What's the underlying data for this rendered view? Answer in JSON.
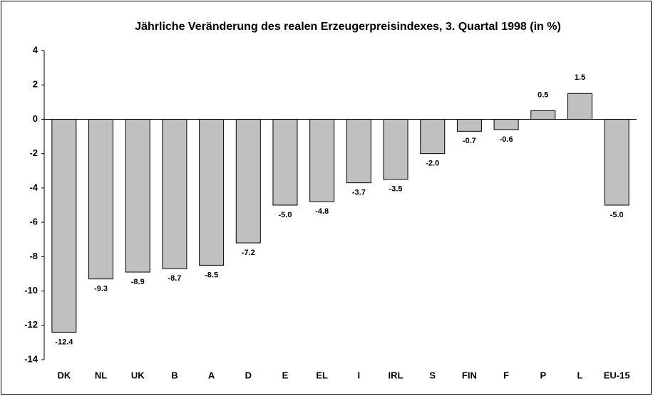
{
  "chart_data": {
    "type": "bar",
    "title": "Jährliche Veränderung des realen Erzeugerpreisindexes, 3. Quartal 1998 (in %)",
    "categories": [
      "DK",
      "NL",
      "UK",
      "B",
      "A",
      "D",
      "E",
      "EL",
      "I",
      "IRL",
      "S",
      "FIN",
      "F",
      "P",
      "L",
      "EU-15"
    ],
    "values": [
      -12.4,
      -9.3,
      -8.9,
      -8.7,
      -8.5,
      -7.2,
      -5.0,
      -4.8,
      -3.7,
      -3.5,
      -2.0,
      -0.7,
      -0.6,
      0.5,
      1.5,
      -5.0
    ],
    "value_labels": [
      "-12.4",
      "-9.3",
      "-8.9",
      "-8.7",
      "-8.5",
      "-7.2",
      "-5.0",
      "-4.8",
      "-3.7",
      "-3.5",
      "-2.0",
      "-0.7",
      "-0.6",
      "0.5",
      "1.5",
      "-5.0"
    ],
    "color": "#c0c0c0",
    "ylim": [
      -14,
      4
    ],
    "yticks": [
      -14,
      -12,
      -10,
      -8,
      -6,
      -4,
      -2,
      0,
      2,
      4
    ]
  }
}
